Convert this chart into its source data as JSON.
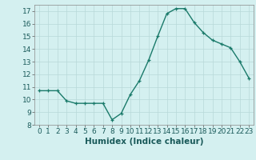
{
  "x": [
    0,
    1,
    2,
    3,
    4,
    5,
    6,
    7,
    8,
    9,
    10,
    11,
    12,
    13,
    14,
    15,
    16,
    17,
    18,
    19,
    20,
    21,
    22,
    23
  ],
  "y": [
    10.7,
    10.7,
    10.7,
    9.9,
    9.7,
    9.7,
    9.7,
    9.7,
    8.4,
    8.9,
    10.4,
    11.5,
    13.1,
    15.0,
    16.8,
    17.2,
    17.2,
    16.1,
    15.3,
    14.7,
    14.4,
    14.1,
    13.0,
    11.7
  ],
  "line_color": "#1a7a6a",
  "marker": "+",
  "marker_size": 3,
  "background_color": "#d4f0f0",
  "grid_color": "#b8d8d8",
  "xlabel": "Humidex (Indice chaleur)",
  "xlim": [
    -0.5,
    23.5
  ],
  "ylim": [
    8,
    17.5
  ],
  "yticks": [
    8,
    9,
    10,
    11,
    12,
    13,
    14,
    15,
    16,
    17
  ],
  "xticks": [
    0,
    1,
    2,
    3,
    4,
    5,
    6,
    7,
    8,
    9,
    10,
    11,
    12,
    13,
    14,
    15,
    16,
    17,
    18,
    19,
    20,
    21,
    22,
    23
  ],
  "xlabel_fontsize": 7.5,
  "tick_fontsize": 6.5
}
